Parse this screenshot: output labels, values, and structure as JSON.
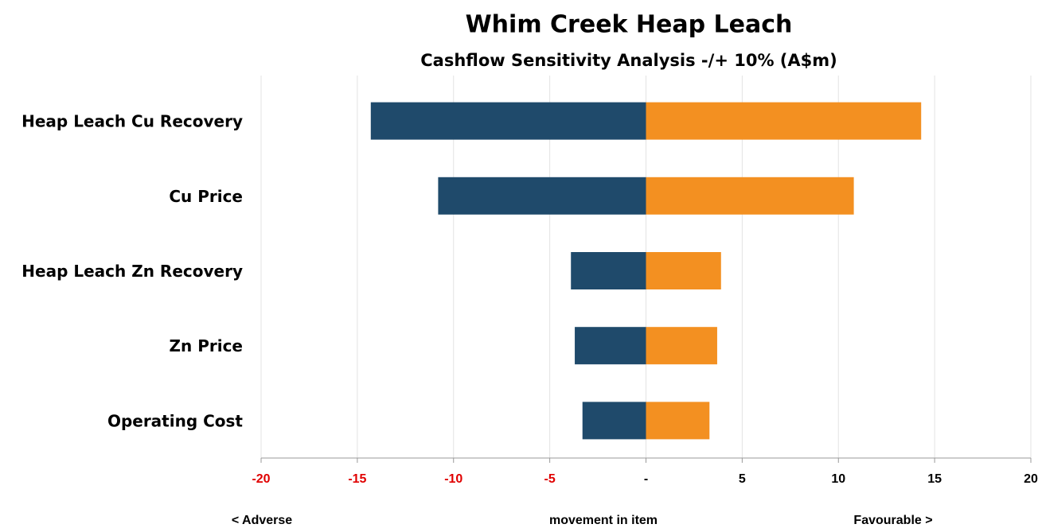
{
  "chart_data": {
    "type": "tornado",
    "title": "Whim Creek Heap Leach",
    "subtitle": "Cashflow Sensitivity Analysis -/+ 10% (A$m)",
    "categories": [
      "Heap Leach Cu Recovery",
      "Cu Price",
      "Heap Leach Zn Recovery",
      "Zn Price",
      "Operating Cost"
    ],
    "series": [
      {
        "color": "#1f4a6b",
        "values": [
          -14.3,
          -10.8,
          -3.9,
          -3.7,
          -3.3
        ]
      },
      {
        "color": "#f39021",
        "values": [
          14.3,
          10.8,
          3.9,
          3.7,
          3.3
        ]
      }
    ],
    "xlim": [
      -20,
      20
    ],
    "xticks": [
      -20,
      -15,
      -10,
      -5,
      {
        "value": 0,
        "label": "-"
      },
      5,
      10,
      15,
      20
    ],
    "negative_tick_color": "#e00000",
    "grid": true,
    "annotations": [
      "< Adverse",
      "movement in item",
      "Favourable >"
    ]
  }
}
